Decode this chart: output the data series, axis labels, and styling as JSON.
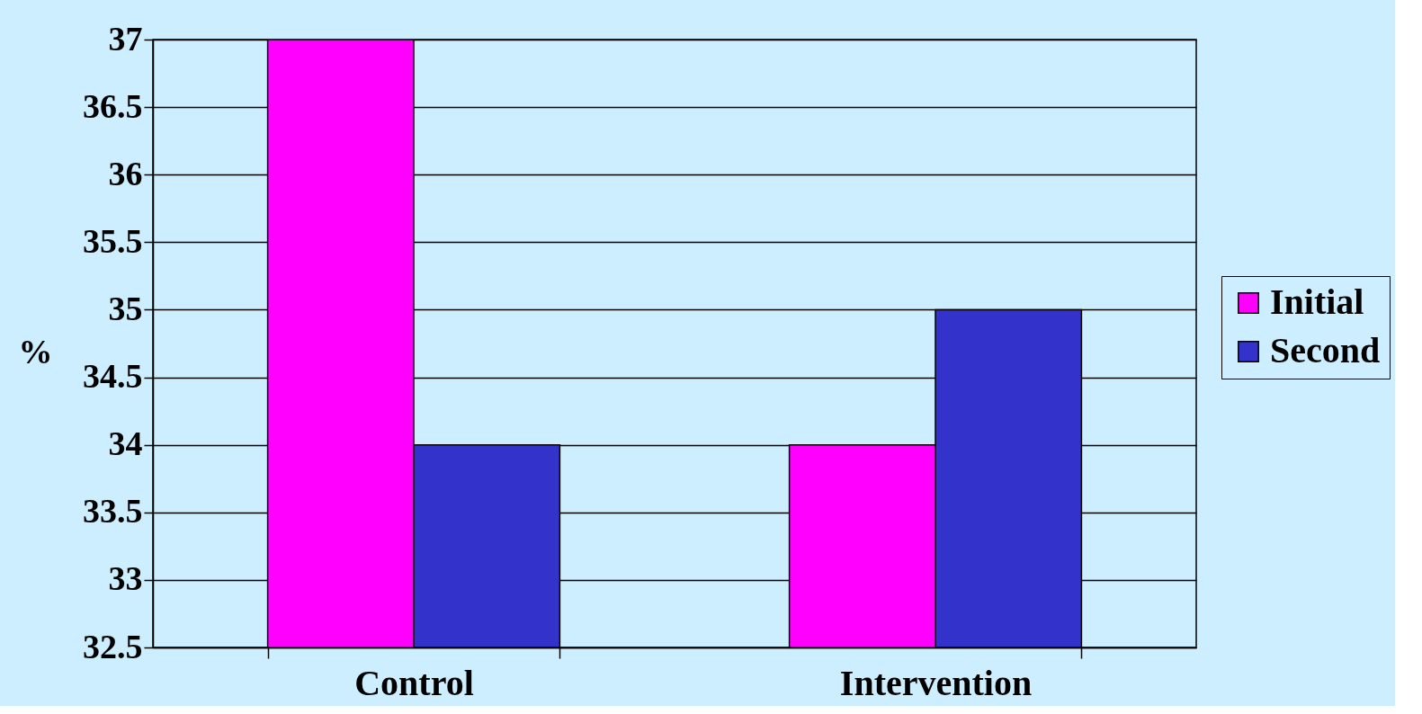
{
  "chart_data": {
    "type": "bar",
    "ylabel": "%",
    "categories": [
      "Control",
      "Intervention"
    ],
    "series": [
      {
        "name": "Initial",
        "color": "#ff00ff",
        "values": [
          37,
          34
        ]
      },
      {
        "name": "Second",
        "color": "#3333cc",
        "values": [
          34,
          35
        ]
      }
    ],
    "ylim": [
      32.5,
      37
    ],
    "yticks": [
      32.5,
      33,
      33.5,
      34,
      34.5,
      35,
      35.5,
      36,
      36.5,
      37
    ],
    "grid": "y",
    "legend": "right"
  }
}
